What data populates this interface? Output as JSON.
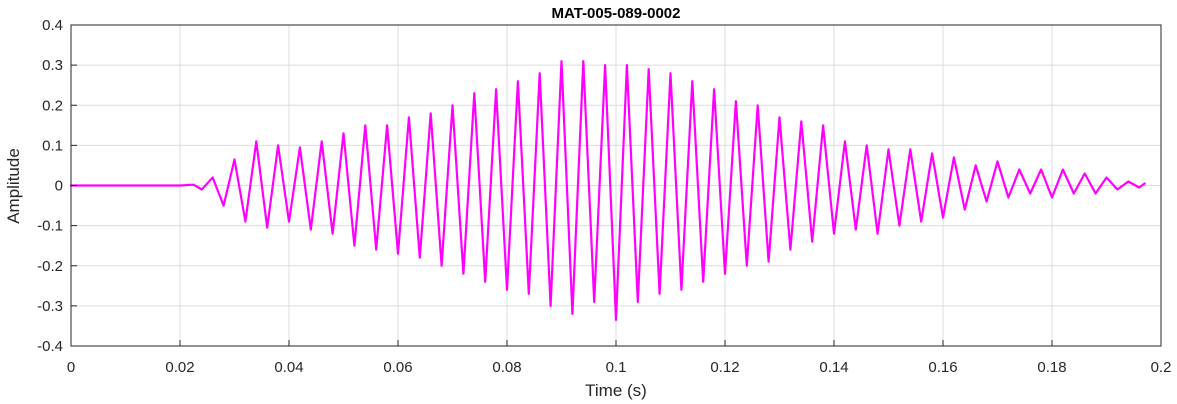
{
  "chart_data": {
    "type": "line",
    "title": "MAT-005-089-0002",
    "xlabel": "Time (s)",
    "ylabel": "Amplitude",
    "xlim": [
      0,
      0.2
    ],
    "ylim": [
      -0.4,
      0.4
    ],
    "x_ticks": [
      "0",
      "0.02",
      "0.04",
      "0.06",
      "0.08",
      "0.1",
      "0.12",
      "0.14",
      "0.16",
      "0.18",
      "0.2"
    ],
    "y_ticks": [
      "0.4",
      "0.3",
      "0.2",
      "0.1",
      "0",
      "-0.1",
      "-0.2",
      "-0.3",
      "-0.4"
    ],
    "grid": true,
    "series": [
      {
        "color": "#ff00ff",
        "x": [
          0,
          0.02,
          0.0225,
          0.024,
          0.026,
          0.028,
          0.03,
          0.032,
          0.034,
          0.036,
          0.038,
          0.04,
          0.042,
          0.044,
          0.046,
          0.048,
          0.05,
          0.052,
          0.054,
          0.056,
          0.058,
          0.06,
          0.062,
          0.064,
          0.066,
          0.068,
          0.07,
          0.072,
          0.074,
          0.076,
          0.078,
          0.08,
          0.082,
          0.084,
          0.086,
          0.088,
          0.09,
          0.092,
          0.094,
          0.096,
          0.098,
          0.1,
          0.102,
          0.104,
          0.106,
          0.108,
          0.11,
          0.112,
          0.114,
          0.116,
          0.118,
          0.12,
          0.122,
          0.124,
          0.126,
          0.128,
          0.13,
          0.132,
          0.134,
          0.136,
          0.138,
          0.14,
          0.142,
          0.144,
          0.146,
          0.148,
          0.15,
          0.152,
          0.154,
          0.156,
          0.158,
          0.16,
          0.162,
          0.164,
          0.166,
          0.168,
          0.17,
          0.172,
          0.174,
          0.176,
          0.178,
          0.18,
          0.182,
          0.184,
          0.186,
          0.188,
          0.19,
          0.192,
          0.194,
          0.196,
          0.197
        ],
        "y": [
          0,
          0,
          0.002,
          -0.01,
          0.02,
          -0.05,
          0.065,
          -0.09,
          0.11,
          -0.105,
          0.1,
          -0.09,
          0.095,
          -0.11,
          0.11,
          -0.12,
          0.13,
          -0.15,
          0.15,
          -0.16,
          0.15,
          -0.17,
          0.17,
          -0.18,
          0.18,
          -0.2,
          0.2,
          -0.22,
          0.23,
          -0.24,
          0.24,
          -0.26,
          0.26,
          -0.27,
          0.28,
          -0.3,
          0.31,
          -0.32,
          0.31,
          -0.29,
          0.3,
          -0.335,
          0.3,
          -0.29,
          0.29,
          -0.27,
          0.28,
          -0.26,
          0.26,
          -0.24,
          0.24,
          -0.22,
          0.21,
          -0.2,
          0.2,
          -0.19,
          0.17,
          -0.16,
          0.16,
          -0.14,
          0.15,
          -0.12,
          0.11,
          -0.11,
          0.1,
          -0.12,
          0.09,
          -0.1,
          0.09,
          -0.09,
          0.08,
          -0.08,
          0.07,
          -0.06,
          0.05,
          -0.04,
          0.06,
          -0.03,
          0.04,
          -0.02,
          0.04,
          -0.03,
          0.04,
          -0.02,
          0.03,
          -0.02,
          0.02,
          -0.01,
          0.01,
          -0.005,
          0.005
        ]
      }
    ]
  }
}
